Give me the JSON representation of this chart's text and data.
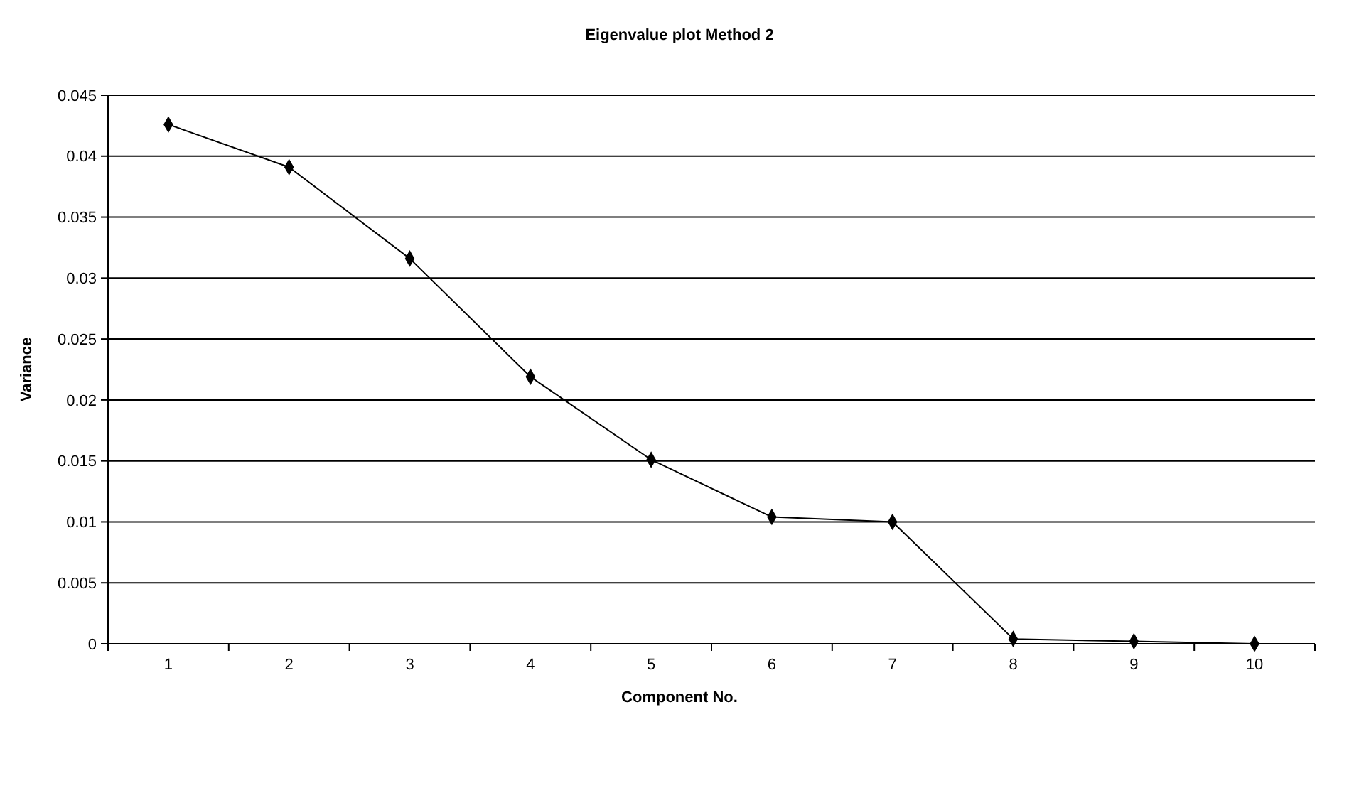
{
  "chart_data": {
    "type": "line",
    "title": "Eigenvalue plot Method 2",
    "xlabel": "Component No.",
    "ylabel": "Variance",
    "categories": [
      "1",
      "2",
      "3",
      "4",
      "5",
      "6",
      "7",
      "8",
      "9",
      "10"
    ],
    "series": [
      {
        "color": "#000000",
        "values": [
          0.0426,
          0.0391,
          0.0316,
          0.0219,
          0.0151,
          0.0104,
          0.01,
          0.0004,
          0.0002,
          0.0
        ]
      }
    ],
    "ylim": [
      0,
      0.045
    ],
    "yticks": [
      0,
      0.005,
      0.01,
      0.015,
      0.02,
      0.025,
      0.03,
      0.035,
      0.04,
      0.045
    ],
    "grid": "y",
    "marker": "diamond",
    "line_style": "solid"
  }
}
